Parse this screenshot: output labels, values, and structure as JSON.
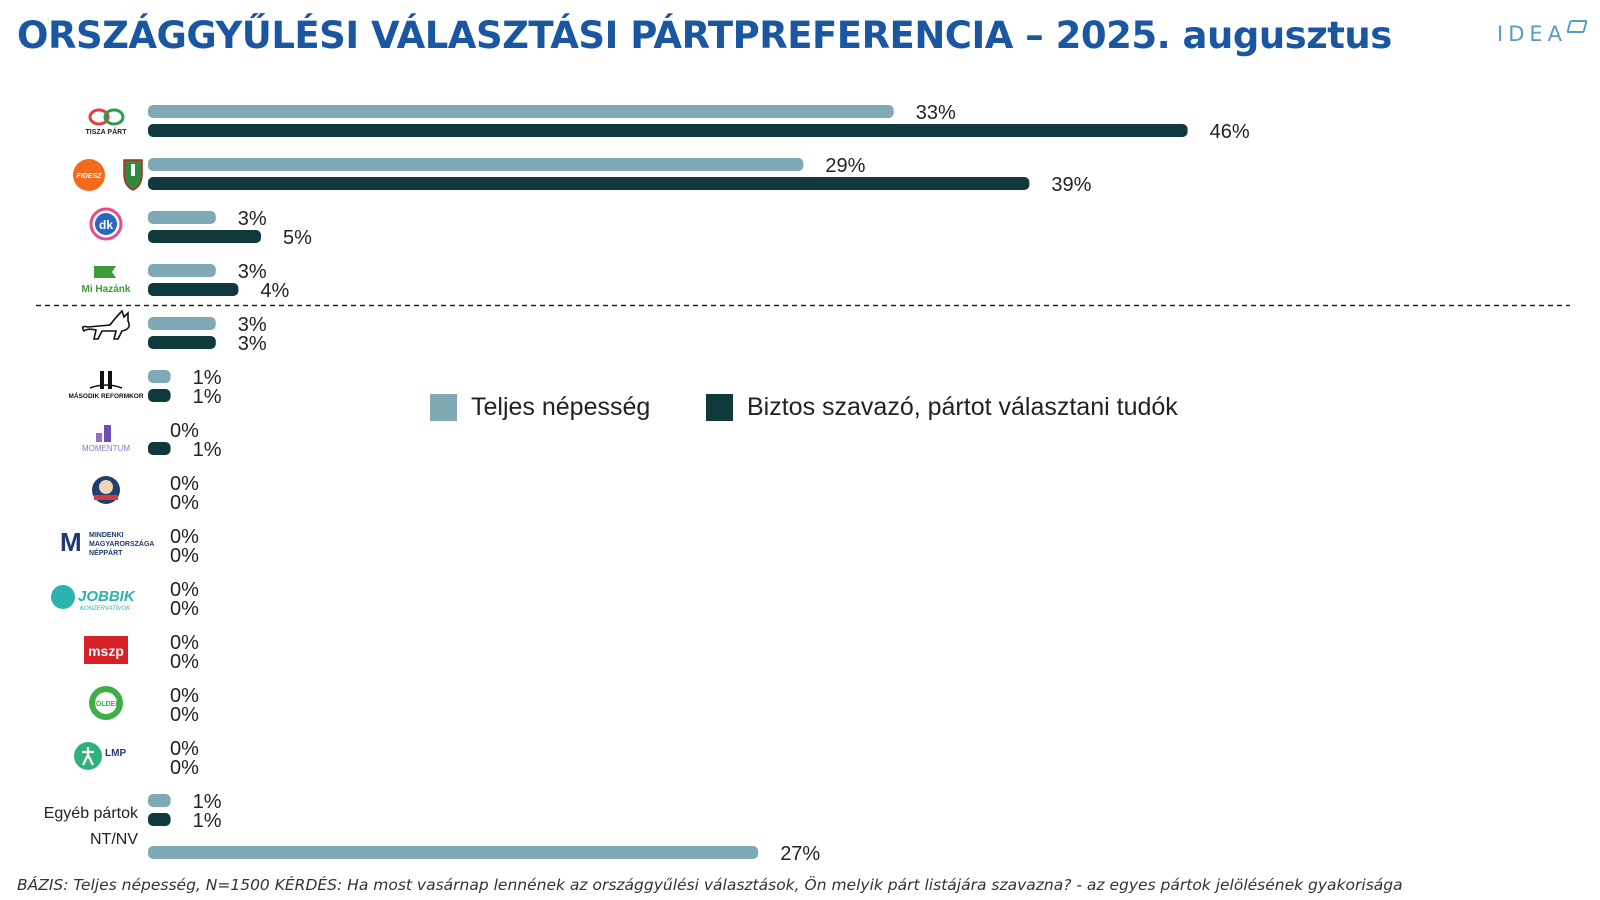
{
  "header": {
    "title": "ORSZÁGGYŰLÉSI VÁLASZTÁSI PÁRTPREFERENCIA – 2025. augusztus",
    "brand": "IDEA"
  },
  "footnote": "BÁZIS: Teljes népesség, N=1500  KÉRDÉS:  Ha most vasárnap lennének az országgyűlési választások, Ön melyik párt listájára szavazna? - az egyes pártok jelölésének gyakorisága",
  "colors": {
    "teljes": "#7fa9b5",
    "biztos": "#10393e",
    "title": "#1b57a0"
  },
  "chart_data": {
    "type": "bar",
    "orientation": "horizontal",
    "categories": [
      {
        "logo": "tisza-logo",
        "text": "TISZA PÁRT"
      },
      {
        "logo": "fidesz-kdnp-logo",
        "text": "FIDESZ"
      },
      {
        "logo": "dk-logo",
        "text": "dk"
      },
      {
        "logo": "mi-hazank-logo",
        "text": "Mi Hazánk"
      },
      {
        "logo": "mkkp-cat-logo",
        "text": ""
      },
      {
        "logo": "masodik-reformkor-logo",
        "text": "MÁSODIK REFORMKOR"
      },
      {
        "logo": "momentum-logo",
        "text": "MOMENTUM"
      },
      {
        "logo": "party-face-logo",
        "text": ""
      },
      {
        "logo": "mmn-logo",
        "text": "MINDENKI MAGYARORSZÁGA NÉPPÁRT"
      },
      {
        "logo": "jobbik-logo",
        "text": "JOBBIK"
      },
      {
        "logo": "mszp-logo",
        "text": "mszp"
      },
      {
        "logo": "zoldek-logo",
        "text": "ZÖLDEK"
      },
      {
        "logo": "lmp-logo",
        "text": "LMP"
      },
      {
        "logo": "",
        "text": "Egyéb pártok"
      },
      {
        "logo": "",
        "text": "NT/NV"
      }
    ],
    "series": [
      {
        "name": "Teljes népesség",
        "color": "#7fa9b5",
        "values": [
          33,
          29,
          3,
          3,
          3,
          1,
          0,
          0,
          0,
          0,
          0,
          0,
          0,
          1,
          27
        ],
        "labels": [
          "33%",
          "29%",
          "3%",
          "3%",
          "3%",
          "1%",
          "0%",
          "0%",
          "0%",
          "0%",
          "0%",
          "0%",
          "0%",
          "1%",
          "27%"
        ]
      },
      {
        "name": "Biztos szavazó, pártot választani tudók",
        "color": "#10393e",
        "values": [
          46,
          39,
          5,
          4,
          3,
          1,
          1,
          0,
          0,
          0,
          0,
          0,
          0,
          1,
          null
        ],
        "labels": [
          "46%",
          "39%",
          "5%",
          "4%",
          "3%",
          "1%",
          "1%",
          "0%",
          "0%",
          "0%",
          "0%",
          "0%",
          "0%",
          "1%",
          ""
        ]
      }
    ],
    "xlim": [
      0,
      50
    ],
    "separator_after_index": 3,
    "legend_position": "center-right",
    "grid": false
  }
}
